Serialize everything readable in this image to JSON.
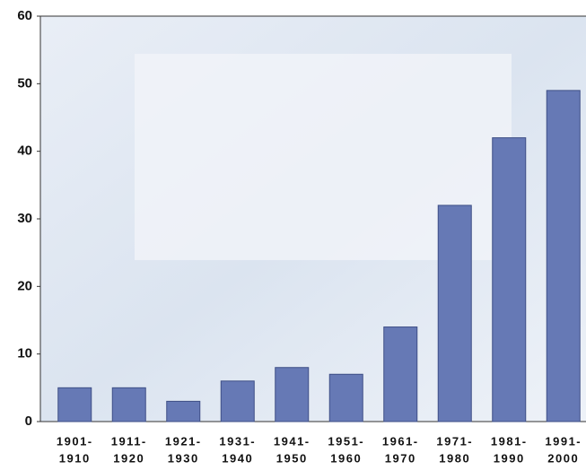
{
  "chart_data": {
    "type": "bar",
    "categories": [
      [
        "1901-",
        "1910"
      ],
      [
        "1911-",
        "1920"
      ],
      [
        "1921-",
        "1930"
      ],
      [
        "1931-",
        "1940"
      ],
      [
        "1941-",
        "1950"
      ],
      [
        "1951-",
        "1960"
      ],
      [
        "1961-",
        "1970"
      ],
      [
        "1971-",
        "1980"
      ],
      [
        "1981-",
        "1990"
      ],
      [
        "1991-",
        "2000"
      ]
    ],
    "values": [
      5,
      5,
      3,
      6,
      8,
      7,
      14,
      32,
      42,
      49
    ],
    "color": "#6679b5",
    "ylim": [
      0,
      60
    ],
    "yticks": [
      0,
      10,
      20,
      30,
      40,
      50,
      60
    ],
    "grid": false
  }
}
